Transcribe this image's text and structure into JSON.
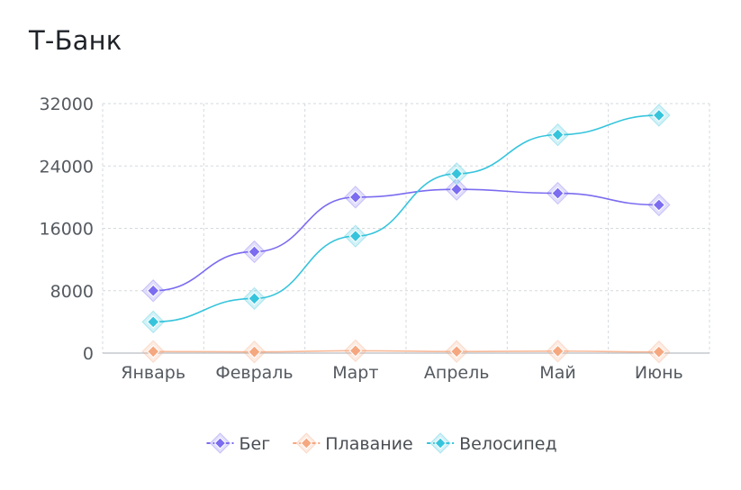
{
  "chart_data": {
    "type": "line",
    "title": "Т-Банк",
    "xlabel": "",
    "ylabel": "",
    "categories": [
      "Январь",
      "Февраль",
      "Март",
      "Апрель",
      "Май",
      "Июнь"
    ],
    "ylim": [
      0,
      32000
    ],
    "yticks": [
      0,
      8000,
      16000,
      24000,
      32000
    ],
    "grid": true,
    "legend_position": "bottom",
    "series": [
      {
        "name": "Бег",
        "color": "#7b6cf0",
        "values": [
          8000,
          13000,
          20000,
          21000,
          20500,
          19000
        ]
      },
      {
        "name": "Плавание",
        "color": "#f5a77f",
        "values": [
          200,
          150,
          300,
          200,
          250,
          150
        ]
      },
      {
        "name": "Велосипед",
        "color": "#36c4dc",
        "values": [
          4000,
          7000,
          15000,
          23000,
          28000,
          30500
        ]
      }
    ]
  }
}
